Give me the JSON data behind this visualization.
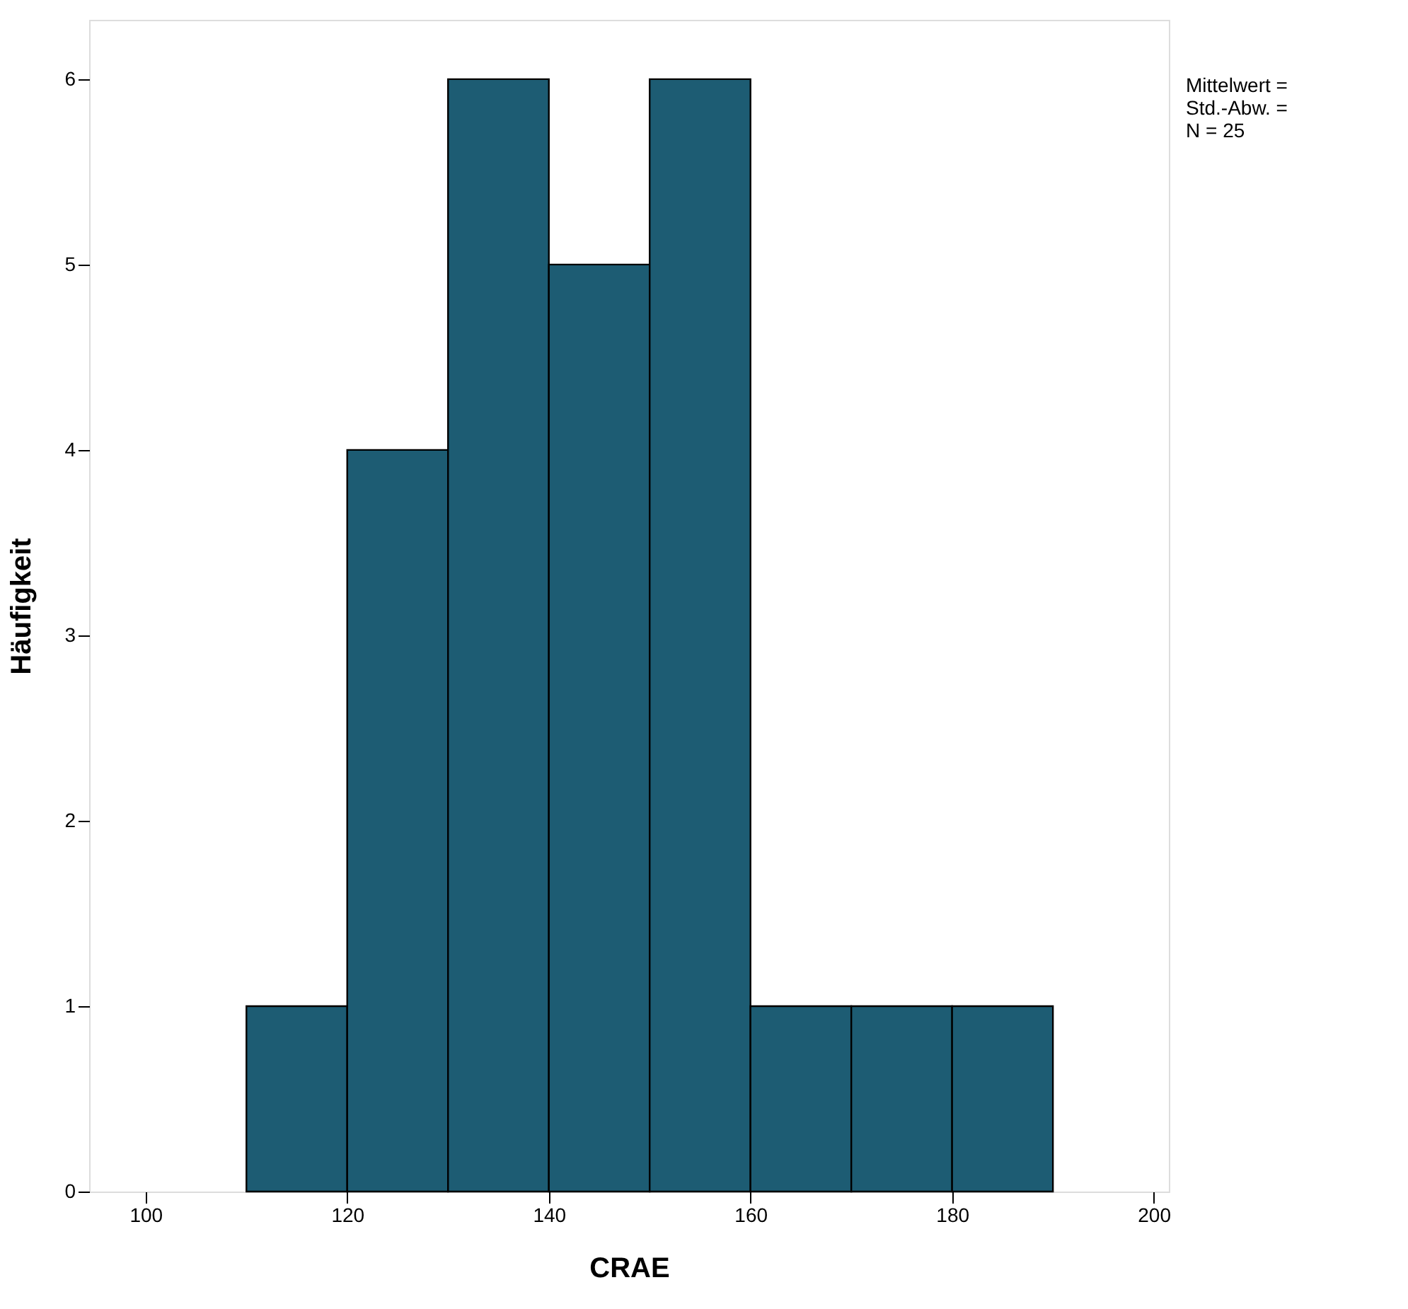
{
  "chart_data": {
    "type": "histogram",
    "xlabel": "CRAE",
    "ylabel": "Häufigkeit",
    "bins": [
      110,
      120,
      130,
      140,
      150,
      160,
      170,
      180,
      190
    ],
    "values": [
      1,
      4,
      6,
      5,
      6,
      1,
      1,
      1
    ],
    "color": "#1d5c73",
    "xlim": [
      94.4,
      201.5
    ],
    "xticks": [
      100,
      120,
      140,
      160,
      180,
      200
    ],
    "ylim": [
      0,
      6.32
    ],
    "yticks": [
      0,
      1,
      2,
      3,
      4,
      5,
      6
    ],
    "grid": false,
    "annotations": [
      "Mittelwert =",
      "Std.-Abw. =",
      "N = 25"
    ]
  }
}
